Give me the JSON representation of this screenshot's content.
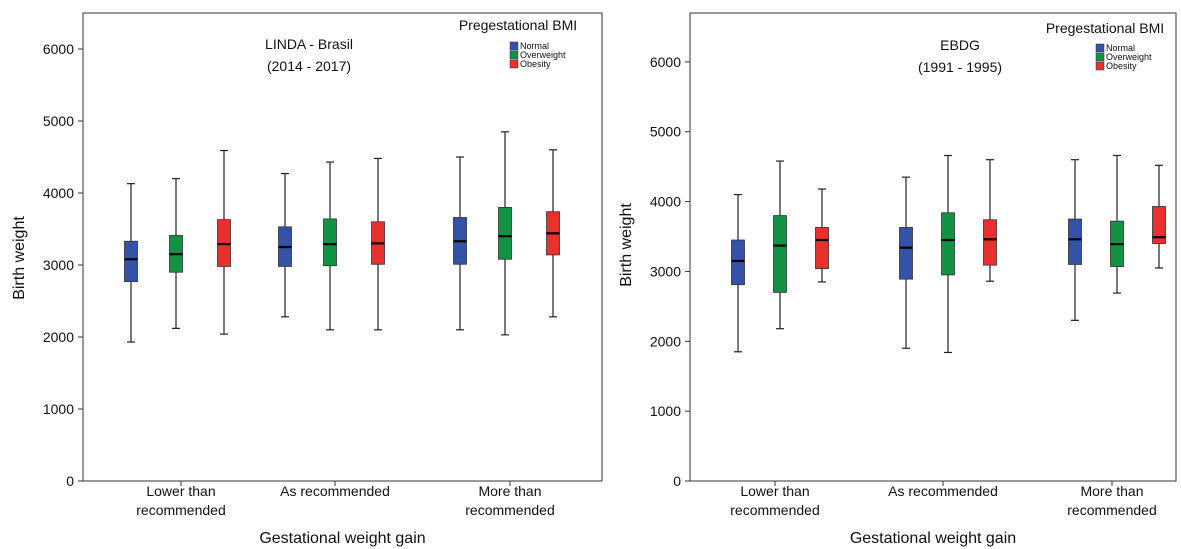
{
  "colors": {
    "Normal": "#3353a8",
    "Overweight": "#139244",
    "Obesity": "#e8302d"
  },
  "chart_data": [
    {
      "type": "box",
      "title": "LINDA - Brasil",
      "subtitle": "(2014 - 2017)",
      "xlabel": "Gestational weight gain",
      "ylabel": "Birth weight",
      "ylim": [
        0,
        6500
      ],
      "yticks": [
        0,
        1000,
        2000,
        3000,
        4000,
        5000,
        6000
      ],
      "legend_title": "Pregestational BMI",
      "legend_position": "top-right",
      "categories": [
        {
          "label": "Lower than",
          "label2": "recommended"
        },
        {
          "label": "As recommended",
          "label2": ""
        },
        {
          "label": "More than",
          "label2": "recommended"
        }
      ],
      "series": [
        {
          "name": "Normal",
          "boxes": [
            {
              "min": 1930,
              "q1": 2770,
              "median": 3080,
              "q3": 3330,
              "max": 4130
            },
            {
              "min": 2280,
              "q1": 2980,
              "median": 3250,
              "q3": 3530,
              "max": 4270
            },
            {
              "min": 2100,
              "q1": 3010,
              "median": 3330,
              "q3": 3660,
              "max": 4500
            }
          ]
        },
        {
          "name": "Overweight",
          "boxes": [
            {
              "min": 2120,
              "q1": 2900,
              "median": 3150,
              "q3": 3410,
              "max": 4200
            },
            {
              "min": 2100,
              "q1": 2990,
              "median": 3290,
              "q3": 3640,
              "max": 4430
            },
            {
              "min": 2030,
              "q1": 3080,
              "median": 3400,
              "q3": 3800,
              "max": 4850
            }
          ]
        },
        {
          "name": "Obesity",
          "boxes": [
            {
              "min": 2040,
              "q1": 2980,
              "median": 3290,
              "q3": 3630,
              "max": 4590
            },
            {
              "min": 2100,
              "q1": 3010,
              "median": 3300,
              "q3": 3600,
              "max": 4480
            },
            {
              "min": 2280,
              "q1": 3140,
              "median": 3440,
              "q3": 3740,
              "max": 4600
            }
          ]
        }
      ]
    },
    {
      "type": "box",
      "title": "EBDG",
      "subtitle": "(1991 - 1995)",
      "xlabel": "Gestational weight gain",
      "ylabel": "Birth weight",
      "ylim": [
        0,
        6700
      ],
      "yticks": [
        0,
        1000,
        2000,
        3000,
        4000,
        5000,
        6000
      ],
      "legend_title": "Pregestational BMI",
      "legend_position": "top-right",
      "categories": [
        {
          "label": "Lower than",
          "label2": "recommended"
        },
        {
          "label": "As recommended",
          "label2": ""
        },
        {
          "label": "More than",
          "label2": "recommended"
        }
      ],
      "series": [
        {
          "name": "Normal",
          "boxes": [
            {
              "min": 1850,
              "q1": 2810,
              "median": 3150,
              "q3": 3450,
              "max": 4100
            },
            {
              "min": 1900,
              "q1": 2890,
              "median": 3340,
              "q3": 3630,
              "max": 4350
            },
            {
              "min": 2300,
              "q1": 3100,
              "median": 3460,
              "q3": 3750,
              "max": 4600
            }
          ]
        },
        {
          "name": "Overweight",
          "boxes": [
            {
              "min": 2180,
              "q1": 2700,
              "median": 3370,
              "q3": 3800,
              "max": 4580
            },
            {
              "min": 1840,
              "q1": 2950,
              "median": 3450,
              "q3": 3840,
              "max": 4660
            },
            {
              "min": 2690,
              "q1": 3070,
              "median": 3390,
              "q3": 3720,
              "max": 4660
            }
          ]
        },
        {
          "name": "Obesity",
          "boxes": [
            {
              "min": 2850,
              "q1": 3040,
              "median": 3450,
              "q3": 3630,
              "max": 4180
            },
            {
              "min": 2860,
              "q1": 3090,
              "median": 3460,
              "q3": 3740,
              "max": 4600
            },
            {
              "min": 3050,
              "q1": 3400,
              "median": 3490,
              "q3": 3930,
              "max": 4520
            }
          ]
        }
      ]
    }
  ]
}
